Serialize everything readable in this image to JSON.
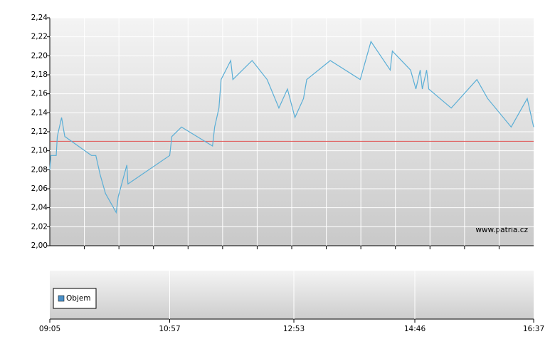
{
  "chart_data": {
    "type": "line",
    "x": [
      "09:05",
      "09:06",
      "09:11",
      "09:12",
      "09:16",
      "09:19",
      "09:44",
      "09:48",
      "09:52",
      "09:57",
      "10:07",
      "10:09",
      "10:17",
      "10:18",
      "10:57",
      "10:59",
      "11:08",
      "11:37",
      "11:39",
      "11:43",
      "11:45",
      "11:54",
      "11:56",
      "12:14",
      "12:28",
      "12:39",
      "12:47",
      "12:54",
      "13:02",
      "13:05",
      "13:27",
      "13:55",
      "14:00",
      "14:05",
      "14:23",
      "14:25",
      "14:42",
      "14:47",
      "14:51",
      "14:53",
      "14:57",
      "14:59",
      "15:20",
      "15:44",
      "15:54",
      "16:16",
      "16:31",
      "16:37"
    ],
    "series": [
      {
        "color": "#5aaed6",
        "values": [
          2.08,
          2.095,
          2.095,
          2.115,
          2.135,
          2.115,
          2.095,
          2.095,
          2.075,
          2.055,
          2.035,
          2.052,
          2.085,
          2.065,
          2.095,
          2.115,
          2.125,
          2.105,
          2.125,
          2.145,
          2.175,
          2.195,
          2.175,
          2.195,
          2.175,
          2.145,
          2.165,
          2.135,
          2.155,
          2.175,
          2.195,
          2.175,
          2.195,
          2.215,
          2.185,
          2.205,
          2.185,
          2.165,
          2.185,
          2.165,
          2.185,
          2.165,
          2.145,
          2.175,
          2.155,
          2.125,
          2.155,
          2.125
        ]
      }
    ],
    "reference_line": 2.11,
    "reference_color": "#e05050",
    "xlim": [
      "09:05",
      "16:37"
    ],
    "xticks": [
      "09:05",
      "10:57",
      "12:53",
      "14:46",
      "16:37"
    ],
    "ylim": [
      2.0,
      2.24
    ],
    "yticks": [
      {
        "value": 2.0,
        "label": "2,00"
      },
      {
        "value": 2.02,
        "label": "2,02"
      },
      {
        "value": 2.04,
        "label": "2,04"
      },
      {
        "value": 2.06,
        "label": "2,06"
      },
      {
        "value": 2.08,
        "label": "2,08"
      },
      {
        "value": 2.1,
        "label": "2,10"
      },
      {
        "value": 2.12,
        "label": "2,12"
      },
      {
        "value": 2.14,
        "label": "2,14"
      },
      {
        "value": 2.16,
        "label": "2,16"
      },
      {
        "value": 2.18,
        "label": "2,18"
      },
      {
        "value": 2.2,
        "label": "2,20"
      },
      {
        "value": 2.22,
        "label": "2,22"
      },
      {
        "value": 2.24,
        "label": "2,24"
      }
    ],
    "grid": true,
    "watermark": "www.patria.cz",
    "volume_legend": "Objem",
    "volume_color": "#4a90c8"
  }
}
